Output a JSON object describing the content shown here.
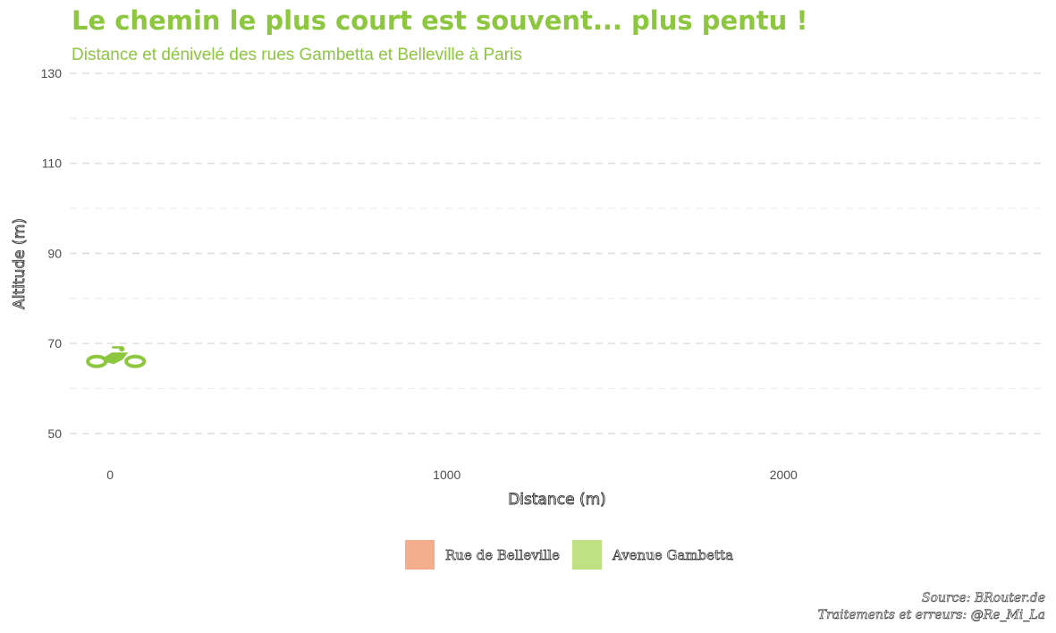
{
  "chart_data": {
    "type": "line",
    "title": "Le chemin le plus court est souvent... plus pentu !",
    "subtitle": "Distance et dénivelé des rues Gambetta et Belleville à Paris",
    "xlabel": "Distance (m)",
    "ylabel": "Altitude (m)",
    "x_ticks": [
      "0",
      "1000",
      "2000"
    ],
    "y_ticks": [
      "130",
      "110",
      "90",
      "70",
      "50"
    ],
    "xlim": [
      -120,
      2780
    ],
    "ylim": [
      45,
      130
    ],
    "grid": true,
    "legend_position": "bottom",
    "series": [
      {
        "name": "Rue de Belleville",
        "color": "#f4ad8d",
        "points": []
      },
      {
        "name": "Avenue Gambetta",
        "color": "#bfe183",
        "points": []
      }
    ],
    "marker": {
      "icon": "bicycle-icon",
      "color": "#8dc63f",
      "x": 0,
      "y": 66
    },
    "caption": [
      "Source: BRouter.de",
      "Traitements et erreurs: @Re_Mi_La"
    ]
  }
}
